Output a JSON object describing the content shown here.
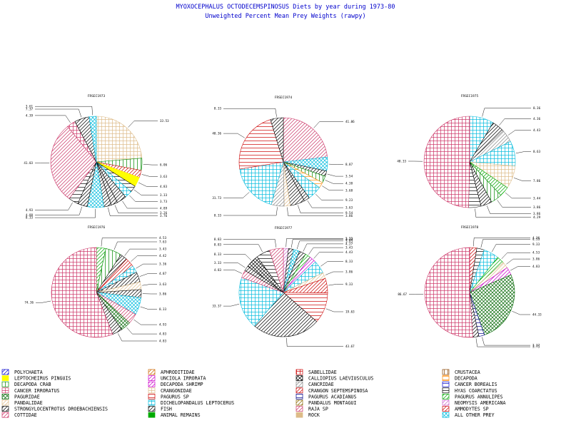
{
  "chart_data": {
    "type": "pie",
    "title": "MYOXOCEPHALUS OCTODECEMSPINOSUS  Diets by year during 1973-80",
    "subtitle": "Unweighted Percent Mean Prey Weights (rawpy)",
    "legend_position": "bottom",
    "legend": [
      {
        "label": "POLYCHAETA",
        "color": "#0000cc",
        "pattern": "diag"
      },
      {
        "label": "APHRODITIDAE",
        "color": "#cc6600",
        "pattern": "diag"
      },
      {
        "label": "SABELLIDAE",
        "color": "#cc0000",
        "pattern": "box"
      },
      {
        "label": "CRUSTACEA",
        "color": "#884400",
        "pattern": "vert"
      },
      {
        "label": "LEPTOCHEIRUS PINGUIS",
        "color": "#ffff00",
        "pattern": "solid"
      },
      {
        "label": "UNCIOLA IRRORATA",
        "color": "#cc00cc",
        "pattern": "diag"
      },
      {
        "label": "CALLIOPIUS LAEVIUSCULUS",
        "color": "#000000",
        "pattern": "cross"
      },
      {
        "label": "DECAPODA",
        "color": "#ff8800",
        "pattern": "horiz"
      },
      {
        "label": "DECAPODA CRAB",
        "color": "#008800",
        "pattern": "vert"
      },
      {
        "label": "DECAPODA SHRIMP",
        "color": "#cc00cc",
        "pattern": "diag"
      },
      {
        "label": "CANCRIDAE",
        "color": "#888888",
        "pattern": "diag"
      },
      {
        "label": "CANCER BOREALIS",
        "color": "#0000cc",
        "pattern": "horiz"
      },
      {
        "label": "CANCER IRRORATUS",
        "color": "#cc3366",
        "pattern": "grid"
      },
      {
        "label": "CRANGONIDAE",
        "color": "#ddbb88",
        "pattern": "grid"
      },
      {
        "label": "CRANGON SEPTEMSPINOSA",
        "color": "#cc0000",
        "pattern": "diag"
      },
      {
        "label": "HYAS COARCTATUS",
        "color": "#000000",
        "pattern": "horiz"
      },
      {
        "label": "PAGURIDAE",
        "color": "#006600",
        "pattern": "cross"
      },
      {
        "label": "PAGURUS SP",
        "color": "#cc0000",
        "pattern": "horiz"
      },
      {
        "label": "PAGURUS ACADIANUS",
        "color": "#000088",
        "pattern": "horiz"
      },
      {
        "label": "PAGURUS ANNULIPES",
        "color": "#00aa00",
        "pattern": "diag"
      },
      {
        "label": "PANDALIDAE",
        "color": "#ddbb88",
        "pattern": "diag"
      },
      {
        "label": "DICHELOPANDALUS LEPTOCERUS",
        "color": "#00bbdd",
        "pattern": "grid"
      },
      {
        "label": "PANDALUS MONTAGUI",
        "color": "#886600",
        "pattern": "diag"
      },
      {
        "label": "NEOMYSIS AMERICANA",
        "color": "#cc66cc",
        "pattern": "diag"
      },
      {
        "label": "STRONGYLOCENTROTUS DROEBACHIENSIS",
        "color": "#000000",
        "pattern": "diag"
      },
      {
        "label": "FISH",
        "color": "#000000",
        "pattern": "diag"
      },
      {
        "label": "RAJA SP",
        "color": "#cc3366",
        "pattern": "diag"
      },
      {
        "label": "AMMODYTES SP",
        "color": "#cc0000",
        "pattern": "diag"
      },
      {
        "label": "COTTIDAE",
        "color": "#cc3366",
        "pattern": "diag"
      },
      {
        "label": "ANIMAL REMAINS",
        "color": "#00aa00",
        "pattern": "solid"
      },
      {
        "label": "ROCK",
        "color": "#ddbb88",
        "pattern": "solid"
      },
      {
        "label": "ALL OTHER PREY",
        "color": "#00bbdd",
        "pattern": "cross"
      }
    ],
    "pies": [
      {
        "title": "FRSEC1973",
        "start_angle": 0,
        "slices": [
          {
            "value": 33.53,
            "label": "33.53",
            "color": "#ddbb88",
            "pattern": "grid"
          },
          {
            "value": 6.06,
            "label": "6.06",
            "color": "#008800",
            "pattern": "vert"
          },
          {
            "value": 3.63,
            "label": "3.63",
            "color": "#cc0000",
            "pattern": "diag"
          },
          {
            "value": 4.83,
            "label": "4.83",
            "color": "#ffff00",
            "pattern": "solid"
          },
          {
            "value": 3.33,
            "label": "3.33",
            "color": "#000000",
            "pattern": "horiz"
          },
          {
            "value": 3.73,
            "label": "3.73",
            "color": "#00bbdd",
            "pattern": "grid"
          },
          {
            "value": 4.89,
            "label": "4.89",
            "color": "#000000",
            "pattern": "diag"
          },
          {
            "value": 3.26,
            "label": "3.26",
            "color": "#000000",
            "pattern": "diag"
          },
          {
            "value": 3.76,
            "label": "3.76",
            "color": "#000000",
            "pattern": "diag"
          },
          {
            "value": 8.33,
            "label": "8.33",
            "color": "#00bbdd",
            "pattern": "cross"
          },
          {
            "value": 4.88,
            "label": "4.88",
            "color": "#000000",
            "pattern": "diag"
          },
          {
            "value": 4.93,
            "label": "4.93",
            "color": "#000000",
            "pattern": "horiz"
          },
          {
            "value": 41.03,
            "label": "41.03",
            "color": "#cc3366",
            "pattern": "diag"
          },
          {
            "value": 4.39,
            "label": "4.39",
            "color": "#cc3366",
            "pattern": "grid"
          },
          {
            "value": 7.37,
            "label": "7.37",
            "color": "#000000",
            "pattern": "diag"
          },
          {
            "value": 3.61,
            "label": "3.61",
            "color": "#00bbdd",
            "pattern": "cross"
          }
        ]
      },
      {
        "title": "FRSEC1974",
        "start_angle": 0,
        "slices": [
          {
            "value": 41.06,
            "label": "41.06",
            "color": "#cc3366",
            "pattern": "diag"
          },
          {
            "value": 8.87,
            "label": "8.87",
            "color": "#00bbdd",
            "pattern": "cross"
          },
          {
            "value": 3.54,
            "label": "3.54",
            "color": "#000000",
            "pattern": "diag"
          },
          {
            "value": 4.38,
            "label": "4.38",
            "color": "#008800",
            "pattern": "vert"
          },
          {
            "value": 3.68,
            "label": "3.68",
            "color": "#ff8800",
            "pattern": "horiz"
          },
          {
            "value": 9.23,
            "label": "9.23",
            "color": "#00bbdd",
            "pattern": "grid"
          },
          {
            "value": 3.63,
            "label": "3.63",
            "color": "#000000",
            "pattern": "diag"
          },
          {
            "value": 9.54,
            "label": "9.54",
            "color": "#000000",
            "pattern": "diag"
          },
          {
            "value": 3.86,
            "label": "3.86",
            "color": "#ddbb88",
            "pattern": "diag"
          },
          {
            "value": 8.33,
            "label": "8.33",
            "color": "#888888",
            "pattern": "diag"
          },
          {
            "value": 31.73,
            "label": "31.73",
            "color": "#00bbdd",
            "pattern": "grid"
          },
          {
            "value": 40.36,
            "label": "40.36",
            "color": "#cc0000",
            "pattern": "horiz"
          },
          {
            "value": 8.33,
            "label": "8.33",
            "color": "#000000",
            "pattern": "diag"
          }
        ]
      },
      {
        "title": "FRSEC1975",
        "start_angle": 0,
        "slices": [
          {
            "value": 8.36,
            "label": "8.36",
            "color": "#00bbdd",
            "pattern": "grid"
          },
          {
            "value": 4.36,
            "label": "4.36",
            "color": "#000000",
            "pattern": "diag"
          },
          {
            "value": 4.43,
            "label": "4.43",
            "color": "#888888",
            "pattern": "diag"
          },
          {
            "value": 8.63,
            "label": "8.63",
            "color": "#00bbdd",
            "pattern": "grid"
          },
          {
            "value": 7.86,
            "label": "7.86",
            "color": "#ddbb88",
            "pattern": "grid"
          },
          {
            "value": 3.44,
            "label": "3.44",
            "color": "#00aa00",
            "pattern": "diag"
          },
          {
            "value": 3.86,
            "label": "3.86",
            "color": "#008800",
            "pattern": "vert"
          },
          {
            "value": 3.86,
            "label": "3.86",
            "color": "#000000",
            "pattern": "diag"
          },
          {
            "value": 4.29,
            "label": "4.29",
            "color": "#000000",
            "pattern": "horiz"
          },
          {
            "value": 48.33,
            "label": "48.33",
            "color": "#cc3366",
            "pattern": "grid"
          }
        ]
      },
      {
        "title": "FRSEC1976",
        "start_angle": 0,
        "slices": [
          {
            "value": 4.53,
            "label": "4.53",
            "color": "#00aa00",
            "pattern": "diag"
          },
          {
            "value": 7.63,
            "label": "7.63",
            "color": "#008800",
            "pattern": "vert"
          },
          {
            "value": 3.43,
            "label": "3.43",
            "color": "#000000",
            "pattern": "diag"
          },
          {
            "value": 4.42,
            "label": "4.42",
            "color": "#cc0000",
            "pattern": "diag"
          },
          {
            "value": 3.36,
            "label": "3.36",
            "color": "#00bbdd",
            "pattern": "grid"
          },
          {
            "value": 4.87,
            "label": "4.87",
            "color": "#000000",
            "pattern": "diag"
          },
          {
            "value": 3.63,
            "label": "3.63",
            "color": "#ddbb88",
            "pattern": "diag"
          },
          {
            "value": 3.86,
            "label": "3.86",
            "color": "#000000",
            "pattern": "diag"
          },
          {
            "value": 8.33,
            "label": "8.33",
            "color": "#00bbdd",
            "pattern": "cross"
          },
          {
            "value": 4.93,
            "label": "4.93",
            "color": "#cc3366",
            "pattern": "diag"
          },
          {
            "value": 4.83,
            "label": "4.83",
            "color": "#006600",
            "pattern": "cross"
          },
          {
            "value": 4.83,
            "label": "4.83",
            "color": "#000000",
            "pattern": "diag"
          },
          {
            "value": 74.36,
            "label": "74.36",
            "color": "#cc3366",
            "pattern": "grid"
          }
        ]
      },
      {
        "title": "FRSEC1977",
        "start_angle": 0,
        "slices": [
          {
            "value": 3.23,
            "label": "3.23",
            "color": "#cc66cc",
            "pattern": "diag"
          },
          {
            "value": 3.33,
            "label": "3.33",
            "color": "#000000",
            "pattern": "diag"
          },
          {
            "value": 3.83,
            "label": "3.83",
            "color": "#00bbdd",
            "pattern": "cross"
          },
          {
            "value": 4.27,
            "label": "4.27",
            "color": "#000000",
            "pattern": "diag"
          },
          {
            "value": 3.43,
            "label": "3.43",
            "color": "#00aa00",
            "pattern": "diag"
          },
          {
            "value": 4.43,
            "label": "4.43",
            "color": "#cc00cc",
            "pattern": "diag"
          },
          {
            "value": 8.33,
            "label": "8.33",
            "color": "#00bbdd",
            "pattern": "grid"
          },
          {
            "value": 3.86,
            "label": "3.86",
            "color": "#ddbb88",
            "pattern": "diag"
          },
          {
            "value": 9.33,
            "label": "9.33",
            "color": "#cc0000",
            "pattern": "diag"
          },
          {
            "value": 19.63,
            "label": "19.63",
            "color": "#cc0000",
            "pattern": "horiz"
          },
          {
            "value": 43.67,
            "label": "43.67",
            "color": "#000000",
            "pattern": "diag"
          },
          {
            "value": 33.37,
            "label": "33.37",
            "color": "#00bbdd",
            "pattern": "grid"
          },
          {
            "value": 4.83,
            "label": "4.83",
            "color": "#cc3366",
            "pattern": "diag"
          },
          {
            "value": 3.33,
            "label": "3.33",
            "color": "#000000",
            "pattern": "diag"
          },
          {
            "value": 8.33,
            "label": "8.33",
            "color": "#000000",
            "pattern": "cross"
          },
          {
            "value": 8.83,
            "label": "8.83",
            "color": "#000000",
            "pattern": "horiz"
          },
          {
            "value": 8.83,
            "label": "8.83",
            "color": "#cc3366",
            "pattern": "diag"
          }
        ]
      },
      {
        "title": "FRSEC1978",
        "start_angle": 0,
        "slices": [
          {
            "value": 4.36,
            "label": "4.36",
            "color": "#cc0000",
            "pattern": "diag"
          },
          {
            "value": 4.53,
            "label": "4.53",
            "color": "#000000",
            "pattern": "horiz"
          },
          {
            "value": 9.33,
            "label": "9.33",
            "color": "#00bbdd",
            "pattern": "grid"
          },
          {
            "value": 4.53,
            "label": "4.53",
            "color": "#00aa00",
            "pattern": "diag"
          },
          {
            "value": 3.86,
            "label": "3.86",
            "color": "#ddbb88",
            "pattern": "diag"
          },
          {
            "value": 4.83,
            "label": "4.83",
            "color": "#cc00cc",
            "pattern": "diag"
          },
          {
            "value": 44.33,
            "label": "44.33",
            "color": "#006600",
            "pattern": "cross"
          },
          {
            "value": 3.37,
            "label": "3.37",
            "color": "#000088",
            "pattern": "horiz"
          },
          {
            "value": 3.73,
            "label": "3.73",
            "color": "#000000",
            "pattern": "diag"
          },
          {
            "value": 86.67,
            "label": "86.67",
            "color": "#cc3366",
            "pattern": "grid"
          }
        ]
      }
    ]
  }
}
